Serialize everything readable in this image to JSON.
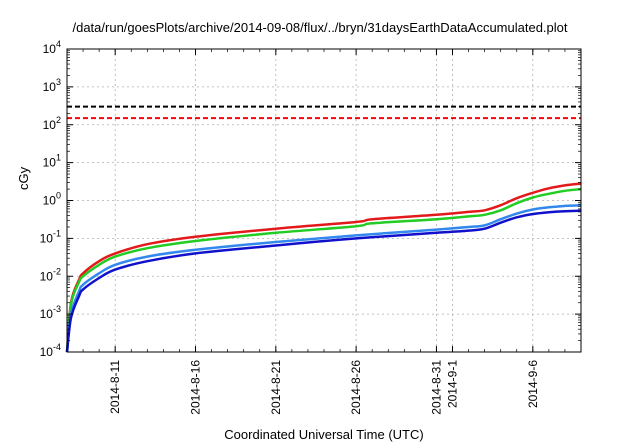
{
  "chart_data": {
    "type": "line",
    "title": "/data/run/goesPlots/archive/2014-09-08/flux/../bryn/31daysEarthDataAccumulated.plot",
    "xlabel": "Coordinated Universal Time (UTC)",
    "ylabel": "cGy",
    "y_scale": "log",
    "ylim": [
      0.0001,
      10000
    ],
    "xlim": [
      "2014-08-08",
      "2014-09-09"
    ],
    "grid": true,
    "y_ticks": [
      {
        "base": "10",
        "exp": "-4",
        "value": 0.0001
      },
      {
        "base": "10",
        "exp": "-3",
        "value": 0.001
      },
      {
        "base": "10",
        "exp": "-2",
        "value": 0.01
      },
      {
        "base": "10",
        "exp": "-1",
        "value": 0.1
      },
      {
        "base": "10",
        "exp": "0",
        "value": 1
      },
      {
        "base": "10",
        "exp": "1",
        "value": 10
      },
      {
        "base": "10",
        "exp": "2",
        "value": 100
      },
      {
        "base": "10",
        "exp": "3",
        "value": 1000
      },
      {
        "base": "10",
        "exp": "4",
        "value": 10000
      }
    ],
    "x_ticks": [
      {
        "label": "2014-8-11",
        "date": "2014-08-11"
      },
      {
        "label": "2014-8-16",
        "date": "2014-08-16"
      },
      {
        "label": "2014-8-21",
        "date": "2014-08-21"
      },
      {
        "label": "2014-8-26",
        "date": "2014-08-26"
      },
      {
        "label": "2014-8-31",
        "date": "2014-08-31"
      },
      {
        "label": "2014-9-1",
        "date": "2014-09-01"
      },
      {
        "label": "2014-9-6",
        "date": "2014-09-06"
      }
    ],
    "reference_lines": [
      {
        "color": "#000000",
        "style": "dashed",
        "value": 300
      },
      {
        "color": "#ff0000",
        "style": "dashed",
        "value": 150
      }
    ],
    "series": [
      {
        "color": "#e31a1c",
        "points": [
          [
            "2014-08-08",
            0.0001
          ],
          [
            "2014-08-08T06:00",
            0.002
          ],
          [
            "2014-08-08T18:00",
            0.008
          ],
          [
            "2014-08-09",
            0.012
          ],
          [
            "2014-08-10",
            0.025
          ],
          [
            "2014-08-11",
            0.04
          ],
          [
            "2014-08-13",
            0.07
          ],
          [
            "2014-08-16",
            0.11
          ],
          [
            "2014-08-21",
            0.18
          ],
          [
            "2014-08-26",
            0.27
          ],
          [
            "2014-08-27",
            0.32
          ],
          [
            "2014-08-31",
            0.42
          ],
          [
            "2014-09-02",
            0.5
          ],
          [
            "2014-09-03",
            0.55
          ],
          [
            "2014-09-04",
            0.75
          ],
          [
            "2014-09-05",
            1.15
          ],
          [
            "2014-09-06",
            1.6
          ],
          [
            "2014-09-07",
            2.1
          ],
          [
            "2014-09-08",
            2.5
          ],
          [
            "2014-09-09",
            2.8
          ]
        ]
      },
      {
        "color": "#22cc22",
        "points": [
          [
            "2014-08-08",
            0.0001
          ],
          [
            "2014-08-08T06:00",
            0.0018
          ],
          [
            "2014-08-08T18:00",
            0.007
          ],
          [
            "2014-08-09",
            0.01
          ],
          [
            "2014-08-10",
            0.02
          ],
          [
            "2014-08-11",
            0.033
          ],
          [
            "2014-08-13",
            0.055
          ],
          [
            "2014-08-16",
            0.085
          ],
          [
            "2014-08-21",
            0.14
          ],
          [
            "2014-08-26",
            0.21
          ],
          [
            "2014-08-27",
            0.25
          ],
          [
            "2014-08-31",
            0.32
          ],
          [
            "2014-09-02",
            0.38
          ],
          [
            "2014-09-03",
            0.42
          ],
          [
            "2014-09-04",
            0.55
          ],
          [
            "2014-09-05",
            0.85
          ],
          [
            "2014-09-06",
            1.2
          ],
          [
            "2014-09-07",
            1.5
          ],
          [
            "2014-09-08",
            1.8
          ],
          [
            "2014-09-09",
            2.0
          ]
        ]
      },
      {
        "color": "#3388ee",
        "points": [
          [
            "2014-08-08",
            0.0001
          ],
          [
            "2014-08-08T06:00",
            0.001
          ],
          [
            "2014-08-08T18:00",
            0.004
          ],
          [
            "2014-08-09",
            0.006
          ],
          [
            "2014-08-10",
            0.012
          ],
          [
            "2014-08-11",
            0.02
          ],
          [
            "2014-08-13",
            0.033
          ],
          [
            "2014-08-16",
            0.05
          ],
          [
            "2014-08-21",
            0.08
          ],
          [
            "2014-08-26",
            0.12
          ],
          [
            "2014-08-31",
            0.17
          ],
          [
            "2014-09-02",
            0.2
          ],
          [
            "2014-09-03",
            0.22
          ],
          [
            "2014-09-04",
            0.32
          ],
          [
            "2014-09-05",
            0.45
          ],
          [
            "2014-09-06",
            0.58
          ],
          [
            "2014-09-07",
            0.66
          ],
          [
            "2014-09-08",
            0.72
          ],
          [
            "2014-09-09",
            0.75
          ]
        ]
      },
      {
        "color": "#1111cc",
        "points": [
          [
            "2014-08-08",
            0.0001
          ],
          [
            "2014-08-08T06:00",
            0.0008
          ],
          [
            "2014-08-08T18:00",
            0.003
          ],
          [
            "2014-08-09",
            0.0045
          ],
          [
            "2014-08-10",
            0.009
          ],
          [
            "2014-08-11",
            0.015
          ],
          [
            "2014-08-13",
            0.025
          ],
          [
            "2014-08-16",
            0.04
          ],
          [
            "2014-08-21",
            0.065
          ],
          [
            "2014-08-26",
            0.1
          ],
          [
            "2014-08-31",
            0.14
          ],
          [
            "2014-09-02",
            0.16
          ],
          [
            "2014-09-03",
            0.18
          ],
          [
            "2014-09-04",
            0.26
          ],
          [
            "2014-09-05",
            0.36
          ],
          [
            "2014-09-06",
            0.44
          ],
          [
            "2014-09-07",
            0.49
          ],
          [
            "2014-09-08",
            0.52
          ],
          [
            "2014-09-09",
            0.54
          ]
        ]
      }
    ]
  }
}
